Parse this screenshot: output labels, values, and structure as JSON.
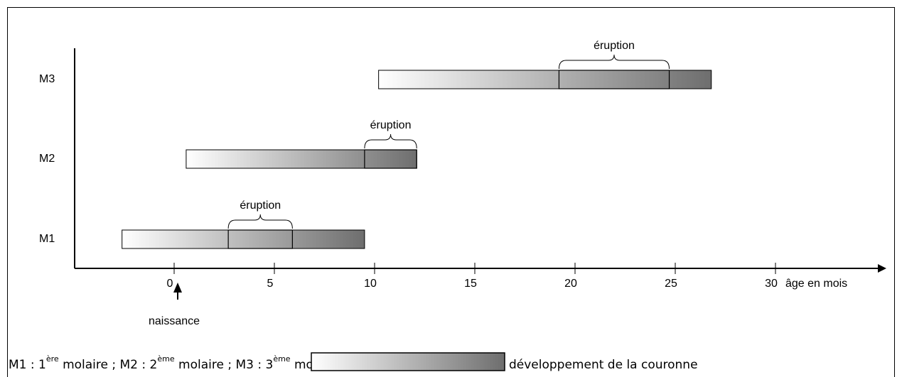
{
  "chart_data": {
    "type": "range",
    "categories": [
      "M1",
      "M2",
      "M3"
    ],
    "start": [
      -2.6,
      0.6,
      10.2
    ],
    "end": [
      9.5,
      12.1,
      26.8
    ],
    "eruption_start": [
      2.7,
      9.5,
      19.2
    ],
    "eruption_end": [
      5.9,
      12.1,
      24.7
    ],
    "eruption_labels": [
      "éruption",
      "éruption",
      "éruption"
    ],
    "xlim": [
      -5,
      35
    ],
    "xticks": [
      0,
      5,
      10,
      15,
      20,
      25,
      30
    ],
    "x_label": "âge en mois",
    "annotation": {
      "text": "naissance",
      "x": 0
    },
    "color_from": "#ffffff",
    "color_to": "#6e6e6e",
    "legend": {
      "parts": [
        {
          "text": "M1 : 1"
        },
        {
          "text": "ère",
          "sup": true
        },
        {
          "text": " molaire ; M2 : 2"
        },
        {
          "text": "ème",
          "sup": true
        },
        {
          "text": " molaire ; M3 : 3"
        },
        {
          "text": "ème",
          "sup": true
        },
        {
          "text": " molaire ;"
        }
      ],
      "swatch_label": "développement de la couronne"
    }
  }
}
